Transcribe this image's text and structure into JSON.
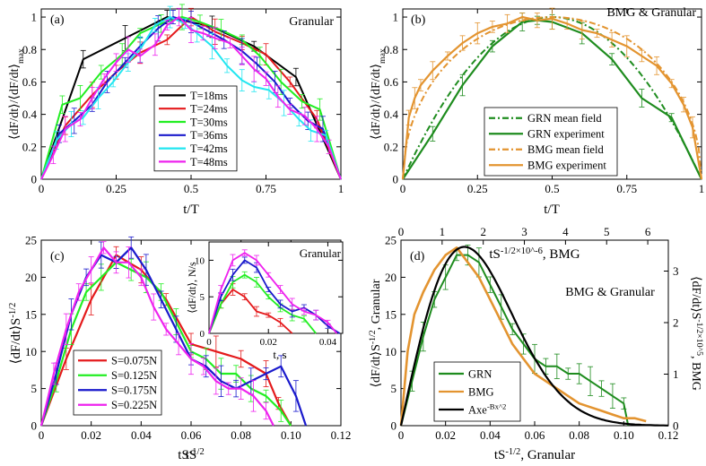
{
  "chart_data": [
    {
      "type": "line",
      "panel": "(a)",
      "title": "Granular",
      "xlabel": "t/T",
      "ylabel": "⟨dF/dt⟩/⟨dF/dt⟩max",
      "xlim": [
        0,
        1
      ],
      "ylim": [
        0,
        1.05
      ],
      "xticks": [
        0,
        0.25,
        0.5,
        0.75,
        1
      ],
      "xticklabels": [
        "0",
        "0.25",
        "0.5",
        "0.75",
        "1"
      ],
      "yticks": [
        0,
        0.2,
        0.4,
        0.6,
        0.8,
        1
      ],
      "yticklabels": [
        "0",
        "0.2",
        "0.4",
        "0.6",
        "0.8",
        "1"
      ],
      "legend_position": "center-right",
      "series": [
        {
          "name": "T=18ms",
          "color": "#000000",
          "x": [
            0,
            0.14,
            0.28,
            0.42,
            0.57,
            0.71,
            0.85,
            1
          ],
          "y": [
            0,
            0.74,
            0.87,
            1.0,
            0.94,
            0.82,
            0.63,
            0
          ]
        },
        {
          "name": "T=24ms",
          "color": "#e41a1c",
          "x": [
            0,
            0.08,
            0.17,
            0.25,
            0.33,
            0.42,
            0.5,
            0.58,
            0.67,
            0.75,
            0.83,
            0.92,
            1
          ],
          "y": [
            0,
            0.33,
            0.52,
            0.66,
            0.78,
            0.86,
            1.0,
            0.91,
            0.84,
            0.77,
            0.6,
            0.37,
            0
          ]
        },
        {
          "name": "T=30ms",
          "color": "#22ee22",
          "x": [
            0,
            0.07,
            0.13,
            0.2,
            0.27,
            0.33,
            0.4,
            0.47,
            0.53,
            0.6,
            0.67,
            0.73,
            0.8,
            0.87,
            0.93,
            1
          ],
          "y": [
            0,
            0.46,
            0.5,
            0.66,
            0.77,
            0.9,
            0.96,
            1.0,
            0.97,
            0.92,
            0.86,
            0.76,
            0.6,
            0.48,
            0.43,
            0
          ]
        },
        {
          "name": "T=36ms",
          "color": "#1a1acc",
          "x": [
            0,
            0.06,
            0.11,
            0.17,
            0.22,
            0.28,
            0.33,
            0.39,
            0.44,
            0.5,
            0.56,
            0.61,
            0.67,
            0.72,
            0.78,
            0.83,
            0.89,
            0.94,
            1
          ],
          "y": [
            0,
            0.28,
            0.36,
            0.46,
            0.6,
            0.72,
            0.82,
            0.93,
            1.0,
            0.97,
            0.91,
            0.86,
            0.79,
            0.71,
            0.6,
            0.47,
            0.36,
            0.31,
            0
          ]
        },
        {
          "name": "T=42ms",
          "color": "#22e6f0",
          "x": [
            0,
            0.05,
            0.1,
            0.14,
            0.19,
            0.24,
            0.29,
            0.33,
            0.38,
            0.43,
            0.48,
            0.52,
            0.57,
            0.62,
            0.67,
            0.71,
            0.76,
            0.81,
            0.86,
            0.9,
            0.95,
            1
          ],
          "y": [
            0,
            0.24,
            0.34,
            0.38,
            0.5,
            0.6,
            0.72,
            0.8,
            0.95,
            1.0,
            0.96,
            0.9,
            0.82,
            0.7,
            0.61,
            0.57,
            0.55,
            0.47,
            0.37,
            0.3,
            0.27,
            0
          ]
        },
        {
          "name": "T=48ms",
          "color": "#ee22ee",
          "x": [
            0,
            0.04,
            0.08,
            0.13,
            0.17,
            0.21,
            0.25,
            0.29,
            0.33,
            0.38,
            0.42,
            0.46,
            0.5,
            0.54,
            0.58,
            0.63,
            0.67,
            0.71,
            0.75,
            0.79,
            0.83,
            0.88,
            0.92,
            0.96,
            1
          ],
          "y": [
            0,
            0.15,
            0.31,
            0.37,
            0.5,
            0.62,
            0.72,
            0.8,
            0.76,
            0.83,
            0.95,
            1.0,
            0.92,
            0.9,
            0.87,
            0.84,
            0.76,
            0.68,
            0.62,
            0.51,
            0.43,
            0.39,
            0.31,
            0.2,
            0
          ]
        }
      ]
    },
    {
      "type": "line",
      "panel": "(b)",
      "title": "BMG & Granular",
      "xlabel": "t/T",
      "ylabel": "⟨dF/dt⟩/⟨dF/dt⟩max",
      "xlim": [
        0,
        1
      ],
      "ylim": [
        0,
        1.05
      ],
      "xticks": [
        0,
        0.25,
        0.5,
        0.75,
        1
      ],
      "xticklabels": [
        "0",
        "0.25",
        "0.5",
        "0.75",
        "1"
      ],
      "yticks": [
        0,
        0.2,
        0.4,
        0.6,
        0.8,
        1
      ],
      "yticklabels": [
        "0",
        "0.2",
        "0.4",
        "0.6",
        "0.8",
        "1"
      ],
      "legend_position": "lower-right",
      "series": [
        {
          "name": "GRN mean field",
          "color": "#1e8c1e",
          "dash": "dashdot",
          "kind": "curve",
          "a": 1.0,
          "exponent": 1.0
        },
        {
          "name": "GRN experiment",
          "color": "#1e8c1e",
          "dash": "solid",
          "x": [
            0,
            0.1,
            0.2,
            0.3,
            0.4,
            0.45,
            0.5,
            0.6,
            0.7,
            0.8,
            0.9,
            1
          ],
          "y": [
            0,
            0.28,
            0.58,
            0.82,
            0.97,
            0.98,
            0.97,
            0.9,
            0.74,
            0.5,
            0.38,
            0
          ]
        },
        {
          "name": "BMG mean field",
          "color": "#e39430",
          "dash": "dashdot",
          "kind": "curve",
          "a": 1.0,
          "exponent": 0.5
        },
        {
          "name": "BMG experiment",
          "color": "#e39430",
          "dash": "solid",
          "x": [
            0,
            0.02,
            0.04,
            0.06,
            0.1,
            0.15,
            0.2,
            0.25,
            0.3,
            0.35,
            0.4,
            0.45,
            0.5,
            0.55,
            0.6,
            0.65,
            0.7,
            0.75,
            0.8,
            0.85,
            0.9,
            0.94,
            0.97,
            1
          ],
          "y": [
            0,
            0.38,
            0.5,
            0.58,
            0.67,
            0.76,
            0.84,
            0.9,
            0.94,
            0.96,
            1.0,
            0.98,
            0.99,
            0.96,
            0.92,
            0.9,
            0.86,
            0.82,
            0.76,
            0.7,
            0.59,
            0.46,
            0.32,
            0
          ]
        }
      ]
    },
    {
      "type": "line",
      "panel": "(c)",
      "xlabel": "tS^-1/2",
      "ylabel": "⟨dF/dt⟩S^-1/2",
      "xlim": [
        0,
        0.12
      ],
      "ylim": [
        0,
        25
      ],
      "xticks": [
        0,
        0.02,
        0.04,
        0.06,
        0.08,
        0.1,
        0.12
      ],
      "xticklabels": [
        "0",
        "0.02",
        "0.04",
        "0.06",
        "0.08",
        "0.10",
        "0.12"
      ],
      "yticks": [
        0,
        5,
        10,
        15,
        20,
        25
      ],
      "yticklabels": [
        "0",
        "5",
        "10",
        "15",
        "20",
        "25"
      ],
      "legend_position": "lower-left",
      "series": [
        {
          "name": "S=0.075N",
          "color": "#e41a1c",
          "x": [
            0,
            0.01,
            0.02,
            0.03,
            0.04,
            0.05,
            0.06,
            0.07,
            0.08,
            0.09,
            0.095,
            0.1
          ],
          "y": [
            0,
            9,
            17,
            23,
            21,
            17,
            11,
            10,
            9,
            7,
            3,
            0
          ]
        },
        {
          "name": "S=0.125N",
          "color": "#22ee22",
          "x": [
            0,
            0.006,
            0.012,
            0.018,
            0.024,
            0.03,
            0.036,
            0.042,
            0.048,
            0.054,
            0.06,
            0.066,
            0.072,
            0.078,
            0.084,
            0.09,
            0.096,
            0.1
          ],
          "y": [
            0,
            6,
            13,
            18,
            20,
            22,
            21,
            20,
            18,
            14,
            10,
            9,
            7,
            7,
            5,
            4,
            2,
            0
          ]
        },
        {
          "name": "S=0.175N",
          "color": "#1a1acc",
          "x": [
            0,
            0.006,
            0.012,
            0.018,
            0.024,
            0.03,
            0.036,
            0.042,
            0.048,
            0.054,
            0.06,
            0.066,
            0.072,
            0.078,
            0.084,
            0.09,
            0.096,
            0.102,
            0.106
          ],
          "y": [
            0,
            7,
            15,
            20,
            23,
            22,
            24,
            21,
            17,
            13,
            9,
            8,
            6,
            5,
            6,
            7,
            8,
            4,
            0
          ]
        },
        {
          "name": "S=0.225N",
          "color": "#ee22ee",
          "x": [
            0,
            0.005,
            0.01,
            0.015,
            0.02,
            0.025,
            0.03,
            0.035,
            0.04,
            0.045,
            0.05,
            0.055,
            0.06,
            0.065,
            0.07,
            0.075,
            0.08,
            0.085,
            0.09,
            0.093
          ],
          "y": [
            0,
            7,
            13,
            18,
            21,
            24,
            22,
            22,
            20,
            16,
            13,
            11,
            9,
            8,
            6,
            5,
            5,
            4,
            2,
            0
          ]
        }
      ],
      "inset": {
        "title": "Granular",
        "xlabel": "t, s",
        "ylabel": "⟨dF/dt⟩, N/s",
        "xlim": [
          0,
          0.045
        ],
        "ylim": [
          0,
          12.5
        ],
        "xticks": [
          0,
          0.02,
          0.04
        ],
        "xticklabels": [
          "0",
          "0.02",
          "0.04"
        ],
        "yticks": [
          0,
          5,
          10
        ],
        "yticklabels": [
          "0",
          "5",
          "10"
        ],
        "series": [
          {
            "name": "S=0.075N",
            "color": "#e41a1c",
            "x": [
              0,
              0.004,
              0.008,
              0.012,
              0.016,
              0.02,
              0.024,
              0.028
            ],
            "y": [
              0,
              4,
              6,
              5,
              3,
              2.5,
              1.5,
              0
            ]
          },
          {
            "name": "S=0.125N",
            "color": "#22ee22",
            "x": [
              0,
              0.004,
              0.008,
              0.012,
              0.016,
              0.02,
              0.024,
              0.028,
              0.032,
              0.036
            ],
            "y": [
              0,
              4,
              7,
              8,
              7,
              5,
              3.5,
              2.5,
              2,
              0
            ]
          },
          {
            "name": "S=0.175N",
            "color": "#1a1acc",
            "x": [
              0,
              0.004,
              0.008,
              0.012,
              0.016,
              0.02,
              0.024,
              0.028,
              0.032,
              0.036,
              0.04,
              0.044
            ],
            "y": [
              0,
              5,
              8,
              10,
              9,
              6,
              4,
              3,
              3.5,
              2.5,
              1,
              0
            ]
          },
          {
            "name": "S=0.225N",
            "color": "#ee22ee",
            "x": [
              0,
              0.004,
              0.008,
              0.012,
              0.016,
              0.02,
              0.024,
              0.028,
              0.032,
              0.036,
              0.04,
              0.043
            ],
            "y": [
              0,
              6,
              10,
              11,
              10,
              8,
              6,
              4,
              3,
              2.5,
              1.5,
              0
            ]
          }
        ]
      }
    },
    {
      "type": "line",
      "panel": "(d)",
      "title": "BMG & Granular",
      "xlabel": "tS^-1/2, Granular",
      "ylabel": "⟨dF/dt⟩S^-1/2, Granular",
      "top_xlabel": "tS^-1/2×10^-6, BMG",
      "right_ylabel": "⟨dF/dt⟩S^-1/2×10^5, BMG",
      "xlim": [
        0,
        0.12
      ],
      "ylim": [
        0,
        25
      ],
      "top_xlim": [
        0,
        6.5
      ],
      "right_ylim": [
        0,
        3.6
      ],
      "xticks": [
        0,
        0.02,
        0.04,
        0.06,
        0.08,
        0.1,
        0.12
      ],
      "xticklabels": [
        "0",
        "0.02",
        "0.04",
        "0.06",
        "0.08",
        "0.10",
        "0.12"
      ],
      "yticks": [
        0,
        5,
        10,
        15,
        20,
        25
      ],
      "yticklabels": [
        "0",
        "5",
        "10",
        "15",
        "20",
        "25"
      ],
      "top_xticks": [
        0,
        1,
        2,
        3,
        4,
        5,
        6
      ],
      "top_xticklabels": [
        "0",
        "1",
        "2",
        "3",
        "4",
        "5",
        "6"
      ],
      "right_yticks": [
        0,
        1,
        2,
        3
      ],
      "right_yticklabels": [
        "0",
        "1",
        "2",
        "3"
      ],
      "legend_position": "lower-left",
      "series": [
        {
          "name": "GRN",
          "color": "#1e8c1e",
          "x": [
            0,
            0.005,
            0.01,
            0.015,
            0.02,
            0.025,
            0.03,
            0.035,
            0.04,
            0.045,
            0.05,
            0.055,
            0.06,
            0.065,
            0.07,
            0.075,
            0.08,
            0.085,
            0.09,
            0.095,
            0.1,
            0.102
          ],
          "y": [
            0,
            6,
            12,
            17,
            20,
            23,
            23,
            22,
            19,
            16,
            13,
            11,
            9,
            8,
            8,
            7,
            7,
            6,
            5,
            4,
            3,
            0
          ]
        },
        {
          "name": "BMG",
          "color": "#e39430",
          "x": [
            0,
            0.003,
            0.006,
            0.01,
            0.015,
            0.02,
            0.025,
            0.03,
            0.035,
            0.04,
            0.045,
            0.05,
            0.055,
            0.06,
            0.065,
            0.07,
            0.075,
            0.08,
            0.085,
            0.09,
            0.095,
            0.1,
            0.105,
            0.11
          ],
          "y": [
            0,
            10,
            15,
            18,
            21,
            23,
            24,
            22,
            20,
            17,
            14,
            11,
            9,
            7,
            6,
            5,
            4,
            3,
            2.5,
            2,
            1.5,
            1,
            1,
            0.6
          ]
        },
        {
          "name": "Axe^-Bx^2",
          "color": "#000000",
          "kind": "fit",
          "A": 1396,
          "B": 617
        }
      ]
    }
  ],
  "colors": {
    "red": "#e41a1c",
    "green": "#22ee22",
    "blue": "#1a1acc",
    "cyan": "#22e6f0",
    "magenta": "#ee22ee",
    "grn_dark_green": "#1e8c1e",
    "bmg_orange": "#e39430"
  }
}
